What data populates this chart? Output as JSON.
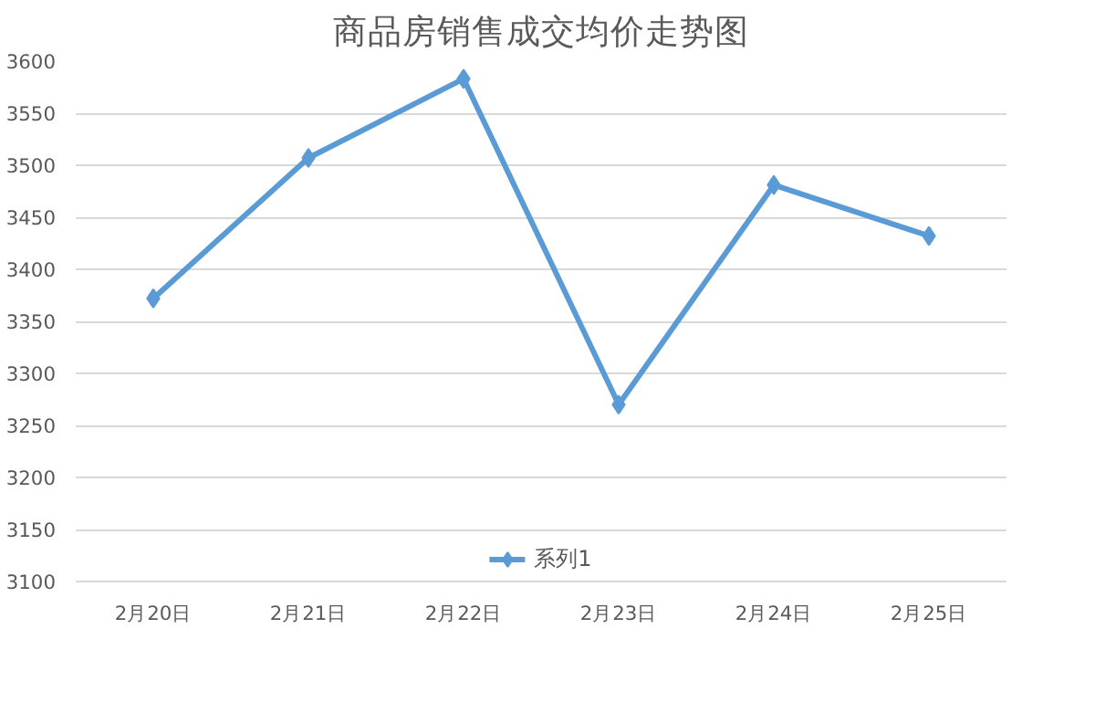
{
  "chart_data": {
    "type": "line",
    "title": "商品房销售成交均价走势图",
    "categories": [
      "2月20日",
      "2月21日",
      "2月22日",
      "2月23日",
      "2月24日",
      "2月25日"
    ],
    "series": [
      {
        "name": "系列1",
        "color": "#5b9bd5",
        "values": [
          3372,
          3507,
          3583,
          3270,
          3481,
          3432
        ]
      }
    ],
    "ylim": [
      3100,
      3600
    ],
    "yticks": [
      3100,
      3150,
      3200,
      3250,
      3300,
      3350,
      3400,
      3450,
      3500,
      3550,
      3600
    ],
    "grid": "y",
    "legend": "bottom",
    "marker": "diamond",
    "line_style": "solid"
  }
}
